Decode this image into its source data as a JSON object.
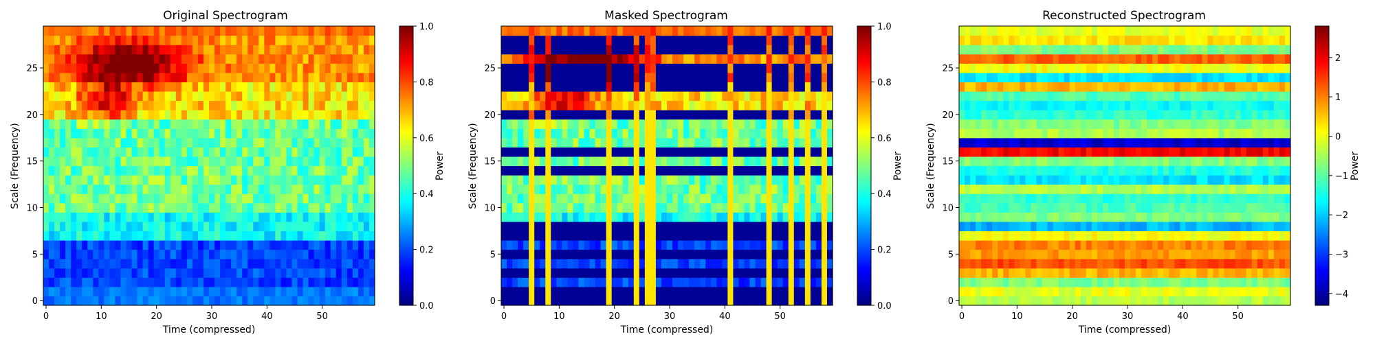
{
  "chart_data": [
    {
      "type": "heatmap",
      "title": "Original Spectrogram",
      "xlabel": "Time (compressed)",
      "ylabel": "Scale (Frequency)",
      "x_range": [
        -0.5,
        59.5
      ],
      "y_range": [
        -0.5,
        29.5
      ],
      "x_ticks": [
        0,
        10,
        20,
        30,
        40,
        50
      ],
      "y_ticks": [
        0,
        5,
        10,
        15,
        20,
        25
      ],
      "n_time": 60,
      "n_scale": 30,
      "colormap": "jet",
      "colorbar": {
        "label": "Power",
        "range": [
          0.0,
          1.0
        ],
        "ticks": [
          "0.0",
          "0.2",
          "0.4",
          "0.6",
          "0.8",
          "1.0"
        ],
        "tick_values": [
          0.0,
          0.2,
          0.4,
          0.6,
          0.8,
          1.0
        ]
      },
      "grid": false
    },
    {
      "type": "heatmap",
      "title": "Masked Spectrogram",
      "xlabel": "Time (compressed)",
      "ylabel": "Scale (Frequency)",
      "x_range": [
        -0.5,
        59.5
      ],
      "y_range": [
        -0.5,
        29.5
      ],
      "x_ticks": [
        0,
        10,
        20,
        30,
        40,
        50
      ],
      "y_ticks": [
        0,
        5,
        10,
        15,
        20,
        25
      ],
      "n_time": 60,
      "n_scale": 30,
      "masked_rows": [
        0,
        1,
        3,
        5,
        7,
        8,
        14,
        16,
        20,
        23,
        24,
        25,
        27,
        28
      ],
      "masked_columns": [
        5,
        8,
        19,
        24,
        26,
        27,
        41,
        48,
        52,
        55,
        58
      ],
      "colormap": "jet",
      "colorbar": {
        "label": "Power",
        "range": [
          0.0,
          1.0
        ],
        "ticks": [
          "0.0",
          "0.2",
          "0.4",
          "0.6",
          "0.8",
          "1.0"
        ],
        "tick_values": [
          0.0,
          0.2,
          0.4,
          0.6,
          0.8,
          1.0
        ]
      },
      "grid": false
    },
    {
      "type": "heatmap",
      "title": "Reconstructed Spectrogram",
      "xlabel": "Time (compressed)",
      "ylabel": "Scale (Frequency)",
      "x_range": [
        -0.5,
        59.5
      ],
      "y_range": [
        -0.5,
        29.5
      ],
      "x_ticks": [
        0,
        10,
        20,
        30,
        40,
        50
      ],
      "y_ticks": [
        0,
        5,
        10,
        15,
        20,
        25
      ],
      "n_time": 60,
      "n_scale": 30,
      "colormap": "jet",
      "colorbar": {
        "label": "Power",
        "range": [
          -4.3,
          2.8
        ],
        "ticks": [
          "2",
          "1",
          "0",
          "−1",
          "−2",
          "−3",
          "−4"
        ],
        "tick_values": [
          2,
          1,
          0,
          -1,
          -2,
          -3,
          -4
        ]
      },
      "grid": false
    }
  ]
}
